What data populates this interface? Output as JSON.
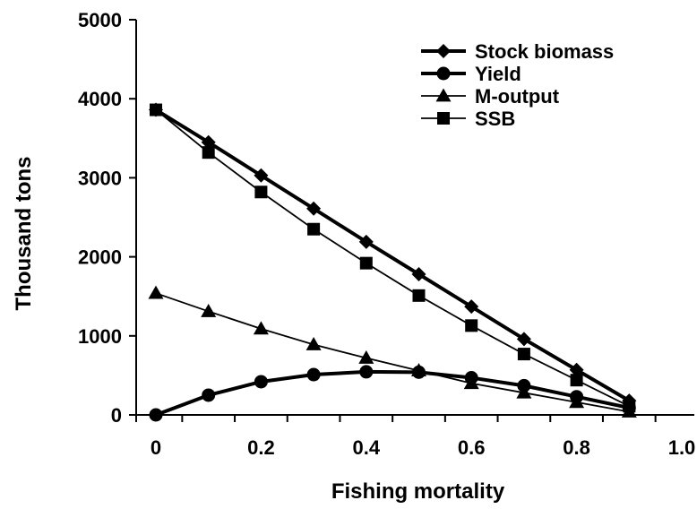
{
  "chart_data": {
    "type": "line",
    "title": "",
    "xlabel": "Fishing mortality",
    "ylabel": "Thousand tons",
    "xlim": [
      0,
      1.0
    ],
    "ylim": [
      0,
      5000
    ],
    "x_ticks": [
      0,
      0.2,
      0.4,
      0.6,
      0.8,
      1.0
    ],
    "x_tick_labels": [
      "0",
      "0.2",
      "0.4",
      "0.6",
      "0.8",
      "1.0"
    ],
    "y_ticks": [
      0,
      1000,
      2000,
      3000,
      4000,
      5000
    ],
    "y_tick_labels": [
      "0",
      "1000",
      "2000",
      "3000",
      "4000",
      "5000"
    ],
    "grid": false,
    "legend_position": "top-right",
    "x": [
      0,
      0.1,
      0.2,
      0.3,
      0.4,
      0.5,
      0.6,
      0.7,
      0.8,
      0.9
    ],
    "series": [
      {
        "name": "Stock biomass",
        "marker": "diamond",
        "line": "thick",
        "values": [
          3860,
          3450,
          3030,
          2610,
          2190,
          1780,
          1370,
          960,
          570,
          180
        ]
      },
      {
        "name": "Yield",
        "marker": "circle",
        "line": "thick",
        "values": [
          0,
          250,
          420,
          510,
          545,
          540,
          470,
          370,
          230,
          90
        ]
      },
      {
        "name": "M-output",
        "marker": "triangle",
        "line": "thin",
        "values": [
          1540,
          1310,
          1090,
          890,
          720,
          560,
          400,
          280,
          160,
          40
        ]
      },
      {
        "name": "SSB",
        "marker": "square",
        "line": "thin",
        "values": [
          3860,
          3320,
          2820,
          2350,
          1920,
          1510,
          1130,
          770,
          440,
          110
        ]
      }
    ]
  },
  "colors": {
    "line": "#000000",
    "background": "#ffffff"
  }
}
